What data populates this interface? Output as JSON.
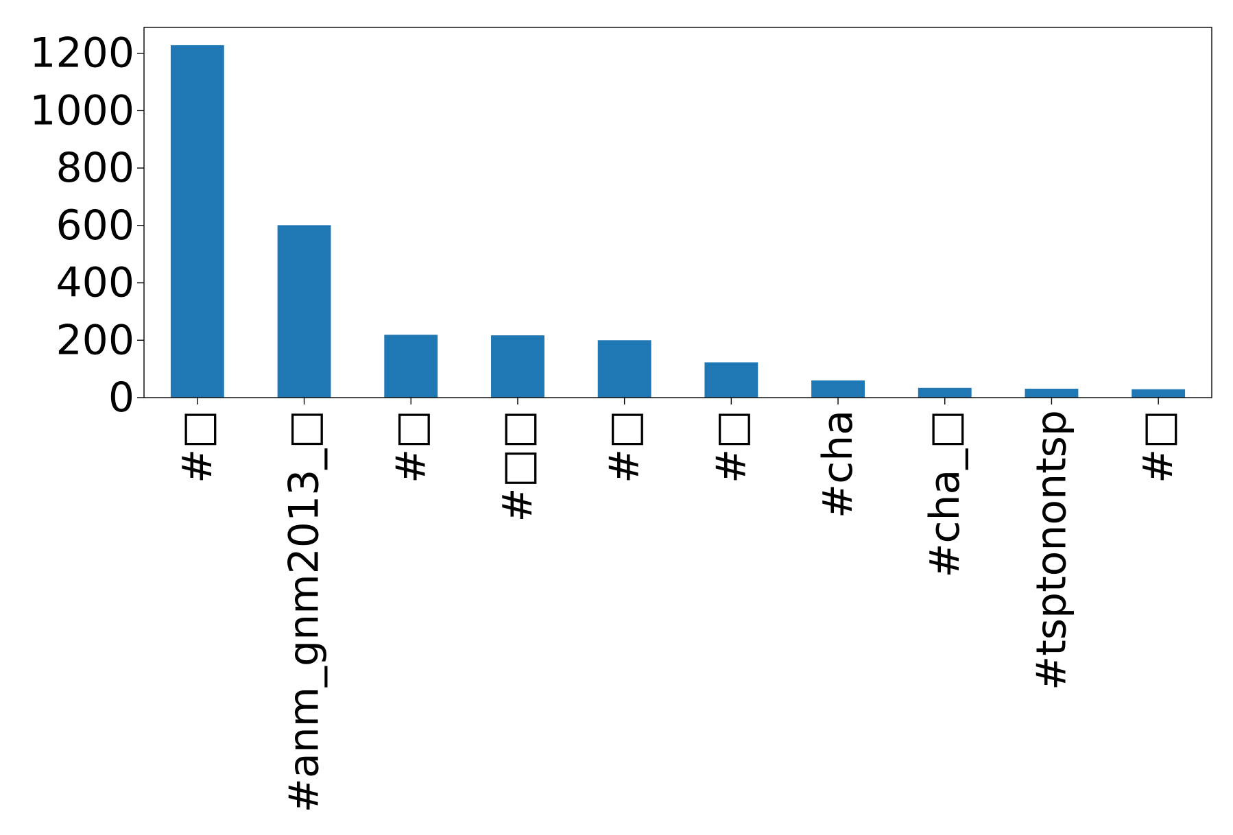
{
  "chart_data": {
    "type": "bar",
    "title": "",
    "xlabel": "",
    "ylabel": "",
    "categories": [
      "#□",
      "#anm_gnm2013_□",
      "#□",
      "#□□",
      "#□",
      "#□",
      "#cha",
      "#cha_□",
      "#tsptonontsp",
      "#□"
    ],
    "values": [
      1228,
      601,
      219,
      217,
      200,
      123,
      60,
      34,
      31,
      29
    ],
    "ylim": [
      0,
      1290
    ],
    "yticks": [
      0,
      200,
      400,
      600,
      800,
      1000,
      1200
    ],
    "bar_color": "#1f77b4",
    "grid": false,
    "legend": "none"
  }
}
